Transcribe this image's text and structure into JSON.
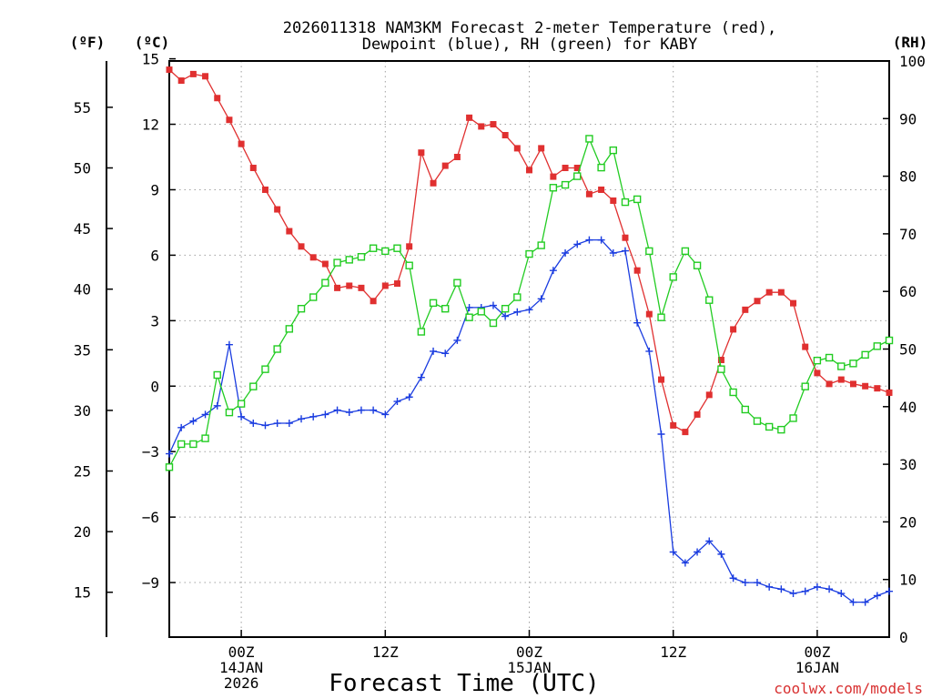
{
  "chart_data": {
    "type": "line",
    "title": [
      "2026011318 NAM3KM Forecast 2-meter Temperature (red),",
      "Dewpoint (blue), RH (green) for KABY"
    ],
    "xlabel": "Forecast Time (UTC)",
    "credit": "coolwx.com/models",
    "units": {
      "fahrenheit": "(ºF)",
      "celsius": "(ºC)",
      "rh": "(RH)"
    },
    "x_unit": "hours since 2026-01-13 18Z",
    "x_range": [
      0,
      60
    ],
    "celsius_range": [
      -11.5,
      14.9
    ],
    "rh_range": [
      0,
      100
    ],
    "fahrenheit_ticks": [
      "15",
      "20",
      "25",
      "30",
      "35",
      "40",
      "45",
      "50",
      "55"
    ],
    "celsius_ticks": [
      "−9",
      "−6",
      "−3",
      "0",
      "3",
      "6",
      "9",
      "12",
      "15"
    ],
    "rh_ticks": [
      "0",
      "10",
      "20",
      "30",
      "40",
      "50",
      "60",
      "70",
      "80",
      "90",
      "100"
    ],
    "x_ticks": [
      {
        "hour": 6,
        "lines": [
          "00Z",
          "14JAN",
          "2026"
        ]
      },
      {
        "hour": 18,
        "lines": [
          "12Z",
          "",
          ""
        ]
      },
      {
        "hour": 30,
        "lines": [
          "00Z",
          "15JAN",
          ""
        ]
      },
      {
        "hour": 42,
        "lines": [
          "12Z",
          "",
          ""
        ]
      },
      {
        "hour": 54,
        "lines": [
          "00Z",
          "16JAN",
          ""
        ]
      }
    ],
    "series": [
      {
        "name": "2-meter Temperature",
        "unit": "°C",
        "color": "#e03030",
        "marker": "filled-square",
        "values": [
          14.5,
          14.0,
          14.3,
          14.2,
          13.2,
          12.2,
          11.1,
          10.0,
          9.0,
          8.1,
          7.1,
          6.4,
          5.9,
          5.6,
          4.5,
          4.6,
          4.5,
          3.9,
          4.6,
          4.7,
          6.4,
          10.7,
          9.3,
          10.1,
          10.5,
          12.3,
          11.9,
          12.0,
          11.5,
          10.9,
          9.9,
          10.9,
          9.6,
          10.0,
          10.0,
          8.8,
          9.0,
          8.5,
          6.8,
          5.3,
          3.3,
          0.3,
          -1.8,
          -2.1,
          -1.3,
          -0.4,
          1.2,
          2.6,
          3.5,
          3.9,
          4.3,
          4.3,
          3.8,
          1.8,
          0.6,
          0.1,
          0.3,
          0.1,
          0.0,
          -0.1,
          -0.3
        ]
      },
      {
        "name": "Dewpoint",
        "unit": "°C",
        "color": "#1a3ce0",
        "marker": "plus",
        "values": [
          -3.1,
          -1.9,
          -1.6,
          -1.3,
          -0.9,
          1.9,
          -1.4,
          -1.7,
          -1.8,
          -1.7,
          -1.7,
          -1.5,
          -1.4,
          -1.3,
          -1.1,
          -1.2,
          -1.1,
          -1.1,
          -1.3,
          -0.7,
          -0.5,
          0.4,
          1.6,
          1.5,
          2.1,
          3.6,
          3.6,
          3.7,
          3.2,
          3.4,
          3.5,
          4.0,
          5.3,
          6.1,
          6.5,
          6.7,
          6.7,
          6.1,
          6.2,
          2.9,
          1.6,
          -2.2,
          -7.6,
          -8.1,
          -7.6,
          -7.1,
          -7.7,
          -8.8,
          -9.0,
          -9.0,
          -9.2,
          -9.3,
          -9.5,
          -9.4,
          -9.2,
          -9.3,
          -9.5,
          -9.9,
          -9.9,
          -9.6,
          -9.4
        ]
      },
      {
        "name": "RH",
        "unit": "%",
        "color": "#22cc22",
        "marker": "open-square",
        "values": [
          29.5,
          33.5,
          33.5,
          34.5,
          45.5,
          39,
          40.5,
          43.5,
          46.5,
          50,
          53.5,
          57,
          59,
          61.5,
          65,
          65.5,
          66,
          67.5,
          67,
          67.5,
          64.5,
          53,
          58,
          57,
          61.5,
          55.5,
          56.5,
          54.5,
          57,
          59,
          66.5,
          68,
          78,
          78.5,
          80,
          86.5,
          81.5,
          84.5,
          75.5,
          76,
          67,
          55.5,
          62.5,
          67,
          64.5,
          58.5,
          46.5,
          42.5,
          39.5,
          37.5,
          36.5,
          36,
          38,
          43.5,
          48,
          48.5,
          47,
          47.5,
          49,
          50.5,
          51.5
        ]
      }
    ]
  }
}
